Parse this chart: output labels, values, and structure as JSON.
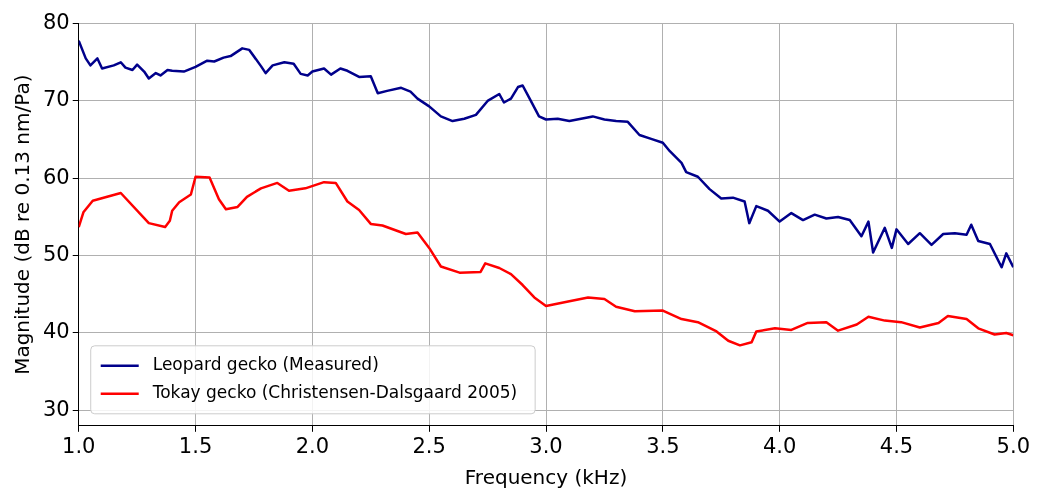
{
  "chart_data": {
    "type": "line",
    "xlabel": "Frequency (kHz)",
    "ylabel": "Magnitude (dB re 0.13 nm/Pa)",
    "xlim": [
      1.0,
      5.0
    ],
    "xticks": [
      {
        "value": 1,
        "label": "1.0"
      },
      {
        "value": 1.5,
        "label": "1.5"
      },
      {
        "value": 2,
        "label": "2.0"
      },
      {
        "value": 2.5,
        "label": "2.5"
      },
      {
        "value": 3,
        "label": "3.0"
      },
      {
        "value": 3.5,
        "label": "3.5"
      },
      {
        "value": 4,
        "label": "4.0"
      },
      {
        "value": 4.5,
        "label": "4.5"
      },
      {
        "value": 5,
        "label": "5.0"
      }
    ],
    "ylim": [
      28,
      80
    ],
    "yticks": [
      30,
      40,
      50,
      60,
      70,
      80
    ],
    "grid": true,
    "legend": "bottom left",
    "series": [
      {
        "name": "Leopard gecko (Measured)",
        "color": "#00008b",
        "x": [
          1.0,
          1.03,
          1.05,
          1.08,
          1.1,
          1.15,
          1.18,
          1.2,
          1.23,
          1.25,
          1.28,
          1.3,
          1.33,
          1.35,
          1.38,
          1.4,
          1.45,
          1.5,
          1.55,
          1.58,
          1.62,
          1.65,
          1.7,
          1.73,
          1.78,
          1.8,
          1.83,
          1.88,
          1.92,
          1.95,
          1.98,
          2.0,
          2.05,
          2.08,
          2.12,
          2.15,
          2.2,
          2.25,
          2.28,
          2.32,
          2.38,
          2.42,
          2.45,
          2.5,
          2.55,
          2.6,
          2.65,
          2.7,
          2.75,
          2.8,
          2.82,
          2.85,
          2.88,
          2.9,
          2.93,
          2.97,
          3.0,
          3.05,
          3.1,
          3.15,
          3.2,
          3.25,
          3.3,
          3.35,
          3.4,
          3.45,
          3.5,
          3.53,
          3.58,
          3.6,
          3.65,
          3.7,
          3.75,
          3.8,
          3.85,
          3.87,
          3.9,
          3.95,
          4.0,
          4.05,
          4.1,
          4.15,
          4.2,
          4.25,
          4.3,
          4.35,
          4.38,
          4.4,
          4.45,
          4.48,
          4.5,
          4.55,
          4.6,
          4.65,
          4.7,
          4.75,
          4.8,
          4.82,
          4.85,
          4.9,
          4.95,
          4.97,
          5.0
        ],
        "values": [
          77.8,
          75.5,
          74.6,
          75.5,
          74.2,
          74.6,
          75.0,
          74.3,
          74.0,
          74.7,
          73.8,
          72.9,
          73.6,
          73.3,
          74.0,
          73.9,
          73.8,
          74.4,
          75.2,
          75.1,
          75.6,
          75.8,
          76.8,
          76.6,
          74.5,
          73.6,
          74.6,
          75.0,
          74.8,
          73.5,
          73.3,
          73.8,
          74.2,
          73.4,
          74.2,
          73.9,
          73.1,
          73.2,
          71.0,
          71.3,
          71.7,
          71.2,
          70.3,
          69.3,
          68.0,
          67.4,
          67.7,
          68.2,
          70.0,
          70.9,
          69.8,
          70.3,
          71.8,
          72.0,
          70.3,
          68.0,
          67.6,
          67.7,
          67.4,
          67.7,
          68.0,
          67.6,
          67.4,
          67.3,
          65.6,
          65.1,
          64.6,
          63.5,
          62.0,
          60.8,
          60.2,
          58.6,
          57.4,
          57.5,
          57.0,
          54.2,
          56.4,
          55.8,
          54.4,
          55.5,
          54.6,
          55.3,
          54.8,
          55.0,
          54.6,
          52.5,
          54.4,
          50.4,
          53.6,
          51.0,
          53.4,
          51.5,
          52.9,
          51.4,
          52.8,
          52.9,
          52.7,
          54.0,
          51.9,
          51.5,
          48.5,
          50.3,
          48.5
        ]
      },
      {
        "name": "Tokay gecko (Christensen-Dalsgaard 2005)",
        "color": "#ff0000",
        "x": [
          1.0,
          1.02,
          1.06,
          1.18,
          1.3,
          1.37,
          1.39,
          1.4,
          1.43,
          1.48,
          1.5,
          1.56,
          1.6,
          1.63,
          1.68,
          1.72,
          1.78,
          1.85,
          1.9,
          1.97,
          2.05,
          2.1,
          2.15,
          2.2,
          2.25,
          2.3,
          2.4,
          2.45,
          2.5,
          2.55,
          2.63,
          2.72,
          2.74,
          2.8,
          2.85,
          2.9,
          2.95,
          3.0,
          3.1,
          3.18,
          3.25,
          3.3,
          3.38,
          3.5,
          3.58,
          3.65,
          3.73,
          3.78,
          3.83,
          3.88,
          3.9,
          3.98,
          4.05,
          4.12,
          4.2,
          4.25,
          4.33,
          4.38,
          4.45,
          4.52,
          4.6,
          4.68,
          4.72,
          4.8,
          4.85,
          4.92,
          4.97,
          5.0
        ],
        "values": [
          53.7,
          55.6,
          57.1,
          58.1,
          54.2,
          53.7,
          54.5,
          55.8,
          56.9,
          57.9,
          60.2,
          60.1,
          57.3,
          56.0,
          56.3,
          57.6,
          58.7,
          59.4,
          58.4,
          58.7,
          59.5,
          59.4,
          57.0,
          55.9,
          54.1,
          53.9,
          52.8,
          53.0,
          51.0,
          48.6,
          47.8,
          47.9,
          49.0,
          48.4,
          47.6,
          46.2,
          44.6,
          43.5,
          44.1,
          44.6,
          44.4,
          43.4,
          42.8,
          42.9,
          41.8,
          41.4,
          40.2,
          39.0,
          38.4,
          38.8,
          40.2,
          40.6,
          40.4,
          41.3,
          41.4,
          40.3,
          41.1,
          42.1,
          41.6,
          41.4,
          40.7,
          41.3,
          42.2,
          41.8,
          40.6,
          39.8,
          40.0,
          39.7
        ]
      }
    ]
  }
}
